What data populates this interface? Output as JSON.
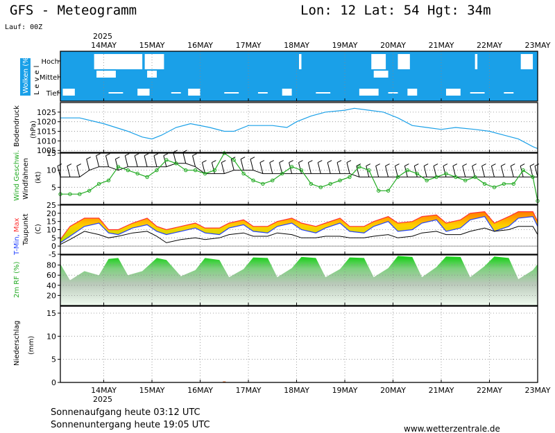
{
  "header": {
    "title": "GFS - Meteogramm",
    "location": "Lon: 12 Lat: 54 Hgt: 34m",
    "run": "Lauf: 00Z"
  },
  "footer": {
    "sunrise": "Sonnenaufgang heute 03:12 UTC",
    "sunset": "Sonnenuntergang heute 19:05 UTC",
    "site": "www.wetterzentrale.de"
  },
  "colors": {
    "cloud": "#1aa0e8",
    "pressure": "#1aa0e8",
    "wind": "#22aa22",
    "tmax": "#ff3030",
    "tmin": "#2040ff",
    "dew": "#000000",
    "rh_green": "#11dd11",
    "rh_text": "#22aa22"
  },
  "chart_data": {
    "type": "line",
    "x_axis": {
      "year": "2025",
      "labels": [
        "14MAY",
        "15MAY",
        "16MAY",
        "17MAY",
        "18MAY",
        "19MAY",
        "20MAY",
        "21MAY",
        "22MAY",
        "23MAY"
      ],
      "start_day": 13.1,
      "end_day": 23.0
    },
    "panels": {
      "clouds": {
        "ylabel": "Wolken (%)",
        "level_label": "Level",
        "levels": [
          "Hoch",
          "Mittel",
          "Tief"
        ],
        "gaps": [
          {
            "level": "Hoch",
            "from": 13.8,
            "to": 14.8
          },
          {
            "level": "Hoch",
            "from": 14.85,
            "to": 15.25
          },
          {
            "level": "Hoch",
            "from": 18.05,
            "to": 18.1
          },
          {
            "level": "Hoch",
            "from": 19.55,
            "to": 19.85
          },
          {
            "level": "Hoch",
            "from": 20.1,
            "to": 20.35
          },
          {
            "level": "Hoch",
            "from": 21.7,
            "to": 21.75
          },
          {
            "level": "Hoch",
            "from": 22.65,
            "to": 22.9
          },
          {
            "level": "Mittel",
            "from": 13.85,
            "to": 14.25
          },
          {
            "level": "Mittel",
            "from": 14.9,
            "to": 15.1
          },
          {
            "level": "Mittel",
            "from": 19.6,
            "to": 19.9
          },
          {
            "level": "Tief",
            "from": 13.15,
            "to": 13.4
          },
          {
            "level": "Tief",
            "from": 14.7,
            "to": 14.95
          },
          {
            "level": "Tief",
            "from": 15.75,
            "to": 16.0
          },
          {
            "level": "Tief",
            "from": 17.7,
            "to": 17.9
          },
          {
            "level": "Tief",
            "from": 19.3,
            "to": 19.7
          },
          {
            "level": "Tief",
            "from": 20.3,
            "to": 20.5
          },
          {
            "level": "Tief",
            "from": 21.1,
            "to": 21.4
          }
        ]
      },
      "pressure": {
        "ylabel": "Bodendruck",
        "unit": "(hPa)",
        "ticks": [
          1025,
          1020,
          1015,
          1010,
          1005
        ],
        "ylim": [
          1004,
          1030
        ],
        "x": [
          13.1,
          13.5,
          14.0,
          14.5,
          14.8,
          15.0,
          15.2,
          15.5,
          15.8,
          16.2,
          16.5,
          16.7,
          17.0,
          17.5,
          17.8,
          18.0,
          18.3,
          18.6,
          19.0,
          19.2,
          19.5,
          19.8,
          20.1,
          20.4,
          20.7,
          21.0,
          21.3,
          21.7,
          22.0,
          22.3,
          22.6,
          22.9,
          23.0
        ],
        "y": [
          1022,
          1022,
          1019,
          1015,
          1012,
          1011,
          1013,
          1017,
          1019,
          1017,
          1015,
          1015,
          1018,
          1018,
          1017,
          1020,
          1023,
          1025,
          1026,
          1027,
          1026,
          1025,
          1022,
          1018,
          1017,
          1016,
          1017,
          1016,
          1015,
          1013,
          1011,
          1007,
          1006
        ]
      },
      "wind": {
        "ylabel": "Wind Geschwi.",
        "ylabel2": "Windfahnen",
        "unit": "(kt)",
        "ticks": [
          15,
          10,
          5
        ],
        "ylim": [
          0,
          15
        ],
        "x": [
          13.1,
          13.3,
          13.5,
          13.7,
          13.9,
          14.1,
          14.3,
          14.5,
          14.7,
          14.9,
          15.1,
          15.3,
          15.5,
          15.7,
          15.9,
          16.1,
          16.3,
          16.5,
          16.7,
          16.9,
          17.1,
          17.3,
          17.5,
          17.7,
          17.9,
          18.1,
          18.3,
          18.5,
          18.7,
          18.9,
          19.1,
          19.3,
          19.5,
          19.7,
          19.9,
          20.1,
          20.3,
          20.5,
          20.7,
          20.9,
          21.1,
          21.3,
          21.5,
          21.7,
          21.9,
          22.1,
          22.3,
          22.5,
          22.7,
          22.9,
          23.0
        ],
        "speed": [
          3,
          3,
          3,
          4,
          6,
          7,
          11,
          10,
          9,
          8,
          10,
          13,
          12,
          10,
          10,
          9,
          10,
          15,
          13,
          9,
          7,
          6,
          7,
          9,
          11,
          10,
          6,
          5,
          6,
          7,
          8,
          11,
          10,
          4,
          4,
          8,
          10,
          9,
          7,
          8,
          9,
          8,
          7,
          8,
          6,
          5,
          6,
          6,
          10,
          8,
          1
        ],
        "gust_line": [
          8,
          8,
          8,
          10,
          11,
          11,
          10,
          11,
          11,
          11,
          11,
          11,
          12,
          12,
          11,
          9,
          9,
          9,
          10,
          10,
          10,
          9,
          9,
          9,
          9,
          9,
          9,
          9,
          9,
          9,
          9,
          8,
          8,
          8,
          8,
          8,
          8,
          8,
          8,
          8,
          8,
          8,
          8,
          8,
          8,
          8,
          8,
          8,
          8,
          8,
          8
        ]
      },
      "temperature": {
        "ylabel_parts": [
          "T-Min, ",
          "Max"
        ],
        "ylabel_min": "T-Min",
        "ylabel_max": "Max",
        "ylabel2": "Taupunkt",
        "unit": "(C)",
        "ticks": [
          25,
          20,
          15,
          10,
          5,
          0,
          -5
        ],
        "ylim": [
          -5,
          25
        ],
        "x": [
          13.1,
          13.3,
          13.6,
          13.9,
          14.1,
          14.3,
          14.6,
          14.9,
          15.1,
          15.3,
          15.6,
          15.9,
          16.1,
          16.4,
          16.6,
          16.9,
          17.1,
          17.4,
          17.6,
          17.9,
          18.1,
          18.4,
          18.6,
          18.9,
          19.1,
          19.4,
          19.6,
          19.9,
          20.1,
          20.4,
          20.6,
          20.9,
          21.1,
          21.4,
          21.6,
          21.9,
          22.1,
          22.4,
          22.6,
          22.9,
          23.0
        ],
        "tmax": [
          4,
          12,
          17,
          17,
          10,
          10,
          14,
          17,
          12,
          10,
          12,
          14,
          11,
          11,
          14,
          16,
          12,
          12,
          15,
          17,
          14,
          12,
          14,
          17,
          12,
          12,
          15,
          18,
          14,
          15,
          18,
          19,
          14,
          16,
          20,
          21,
          14,
          18,
          21,
          21,
          15
        ],
        "tmin": [
          2,
          6,
          12,
          14,
          8,
          7,
          11,
          13,
          9,
          7,
          9,
          11,
          8,
          7,
          11,
          13,
          9,
          8,
          12,
          14,
          10,
          8,
          11,
          14,
          9,
          8,
          12,
          15,
          9,
          10,
          14,
          16,
          9,
          11,
          16,
          18,
          9,
          12,
          17,
          18,
          12
        ],
        "dew": [
          1,
          4,
          9,
          7,
          5,
          6,
          8,
          9,
          6,
          2,
          4,
          5,
          4,
          5,
          7,
          8,
          6,
          6,
          8,
          7,
          5,
          5,
          6,
          6,
          5,
          5,
          6,
          7,
          5,
          6,
          8,
          9,
          7,
          7,
          9,
          11,
          9,
          10,
          12,
          12,
          7
        ]
      },
      "humidity": {
        "ylabel": "2m RF (%)",
        "ticks": [
          80,
          60,
          40,
          20
        ],
        "ylim": [
          0,
          100
        ],
        "x": [
          13.1,
          13.3,
          13.6,
          13.9,
          14.1,
          14.3,
          14.5,
          14.8,
          15.1,
          15.3,
          15.6,
          15.9,
          16.1,
          16.4,
          16.6,
          16.9,
          17.1,
          17.4,
          17.6,
          17.9,
          18.1,
          18.4,
          18.6,
          18.9,
          19.1,
          19.4,
          19.6,
          19.9,
          20.1,
          20.4,
          20.6,
          20.9,
          21.1,
          21.4,
          21.6,
          21.9,
          22.1,
          22.4,
          22.6,
          22.9,
          23.0
        ],
        "rh": [
          82,
          50,
          68,
          60,
          92,
          94,
          60,
          68,
          94,
          90,
          58,
          70,
          94,
          90,
          56,
          72,
          95,
          94,
          56,
          74,
          96,
          94,
          56,
          72,
          95,
          94,
          56,
          74,
          98,
          96,
          56,
          76,
          97,
          96,
          56,
          78,
          97,
          94,
          52,
          70,
          82
        ]
      },
      "precipitation": {
        "ylabel": "Niederschlag",
        "unit": "(mm)",
        "ticks": [
          15,
          10,
          5,
          0
        ],
        "ylim": [
          0,
          16.5
        ],
        "bars": [
          {
            "x": 16.5,
            "value": 0.1
          }
        ]
      }
    }
  }
}
